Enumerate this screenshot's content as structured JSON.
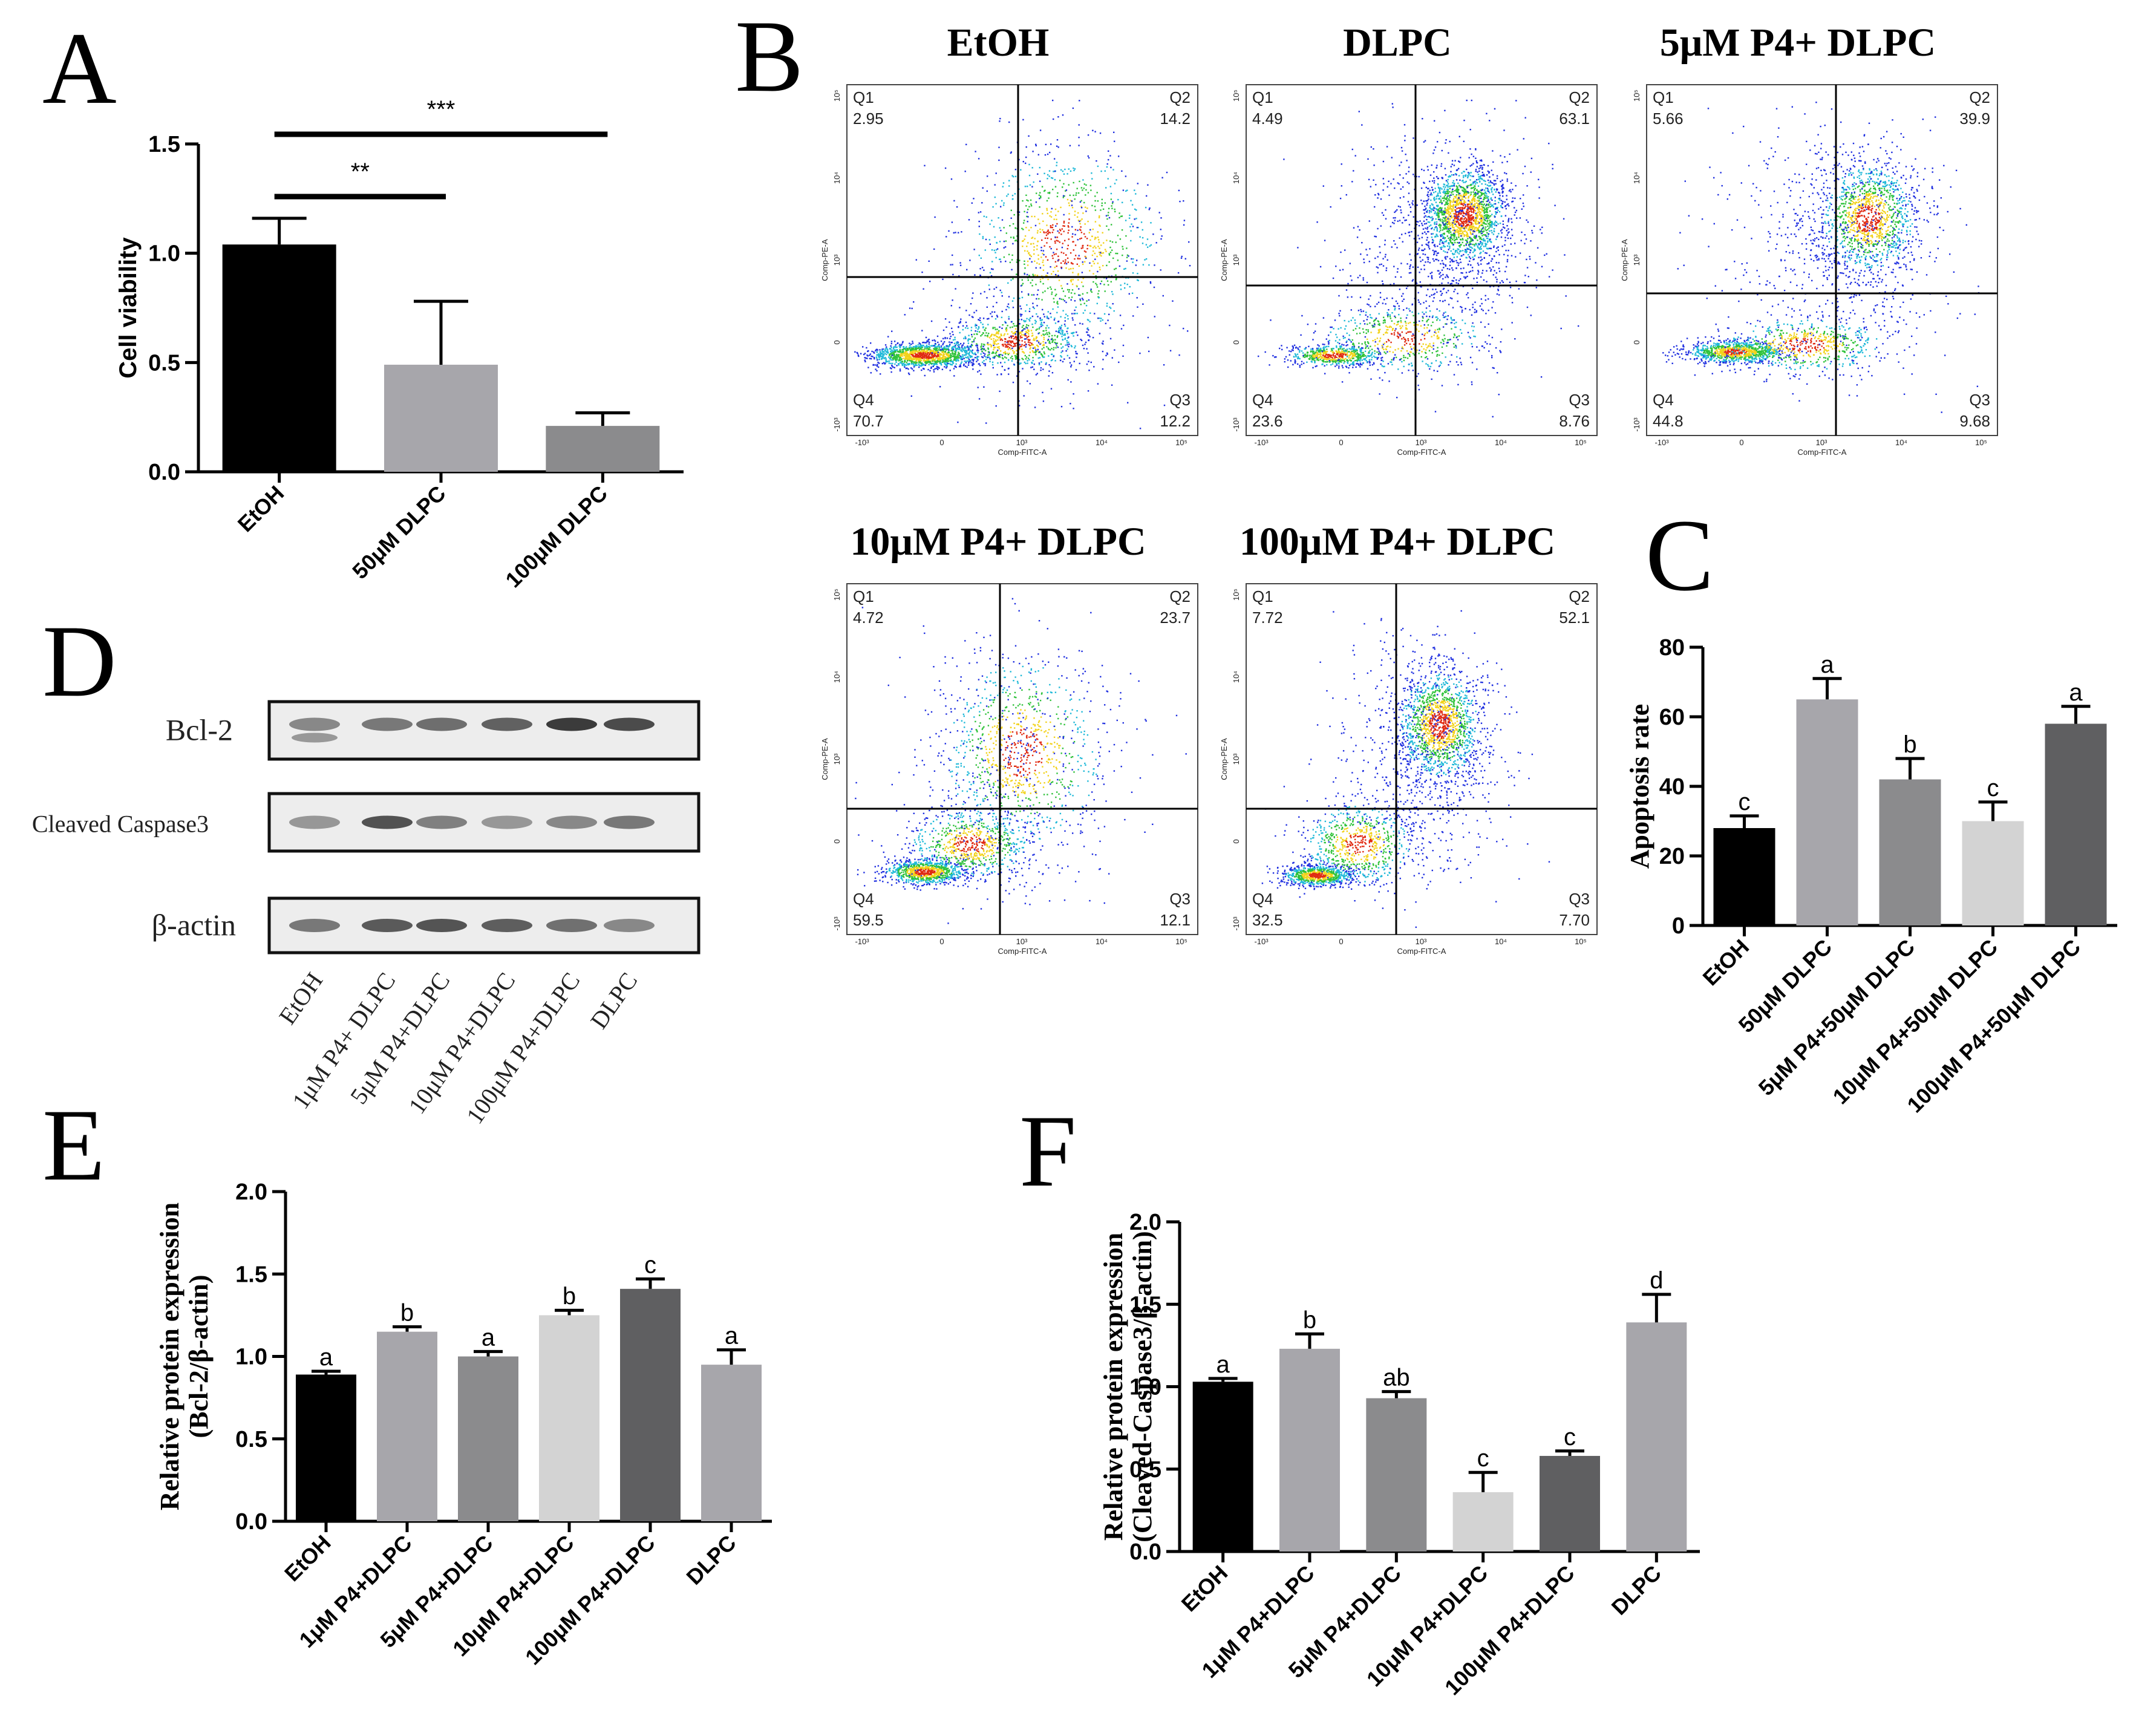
{
  "colors": {
    "black": "#000000",
    "grey_light": "#a7a6ab",
    "grey_mid": "#8b8b8d",
    "grey_pale": "#d3d3d3",
    "grey_dark": "#5f5f61",
    "grey_50": "#9d9d9f",
    "grey_100": "#7b7b7d"
  },
  "panel_letters": {
    "A": "A",
    "B": "B",
    "C": "C",
    "D": "D",
    "E": "E",
    "F": "F"
  },
  "chart_data": [
    {
      "panel": "A",
      "type": "bar",
      "categories": [
        "EtOH",
        "50μM DLPC",
        "100μM DLPC"
      ],
      "values": [
        1.04,
        0.49,
        0.21
      ],
      "errors": [
        0.12,
        0.29,
        0.06
      ],
      "bar_colors": [
        "#000000",
        "#a7a6ab",
        "#8b8b8d"
      ],
      "ylabel": "Cell viability",
      "ylim": [
        0.0,
        1.5
      ],
      "yticks": [
        "0.0",
        "0.5",
        "1.0",
        "1.5"
      ],
      "significance": [
        {
          "from": 0,
          "to": 1,
          "label": "**"
        },
        {
          "from": 0,
          "to": 2,
          "label": "***"
        }
      ]
    },
    {
      "panel": "C",
      "type": "bar",
      "categories": [
        "EtOH",
        "50μM DLPC",
        "5μM P4+50μM DLPC",
        "10μM P4+50μM DLPC",
        "100μM P4+50μM DLPC"
      ],
      "values": [
        28,
        65,
        42,
        30,
        58
      ],
      "errors": [
        3.5,
        6,
        6,
        5.5,
        5
      ],
      "letters": [
        "c",
        "a",
        "b",
        "c",
        "a"
      ],
      "bar_colors": [
        "#000000",
        "#a7a6ab",
        "#8b8b8d",
        "#d3d3d3",
        "#5f5f61"
      ],
      "ylabel": "Apoptosis rate",
      "ylim": [
        0,
        80
      ],
      "yticks": [
        "0",
        "20",
        "40",
        "60",
        "80"
      ]
    },
    {
      "panel": "E",
      "type": "bar",
      "categories": [
        "EtOH",
        "1μM P4+DLPC",
        "5μM P4+DLPC",
        "10μM P4+DLPC",
        "100μM P4+DLPC",
        "DLPC"
      ],
      "values": [
        0.89,
        1.15,
        1.0,
        1.25,
        1.41,
        0.95
      ],
      "errors": [
        0.02,
        0.03,
        0.03,
        0.03,
        0.06,
        0.09
      ],
      "letters": [
        "a",
        "b",
        "a",
        "b",
        "c",
        "a"
      ],
      "bar_colors": [
        "#000000",
        "#a7a6ab",
        "#8b8b8d",
        "#d3d3d3",
        "#5f5f61",
        "#a7a6ab"
      ],
      "ylabel_line1": "Relative protein expression",
      "ylabel_line2": "(Bcl-2/β-actin)",
      "ylim": [
        0.0,
        2.0
      ],
      "yticks": [
        "0.0",
        "0.5",
        "1.0",
        "1.5",
        "2.0"
      ]
    },
    {
      "panel": "F",
      "type": "bar",
      "categories": [
        "EtOH",
        "1μM P4+DLPC",
        "5μM P4+DLPC",
        "10μM P4+DLPC",
        "100μM P4+DLPC",
        "DLPC"
      ],
      "values": [
        1.03,
        1.23,
        0.93,
        0.36,
        0.58,
        1.39
      ],
      "errors": [
        0.02,
        0.09,
        0.04,
        0.12,
        0.03,
        0.17
      ],
      "letters": [
        "a",
        "b",
        "ab",
        "c",
        "c",
        "d"
      ],
      "bar_colors": [
        "#000000",
        "#a7a6ab",
        "#8b8b8d",
        "#d3d3d3",
        "#5f5f61",
        "#a7a6ab"
      ],
      "ylabel_line1": "Relative protein expression",
      "ylabel_line2": "(Cleaved-Caspase3/β-actin)",
      "ylim": [
        0.0,
        2.0
      ],
      "yticks": [
        "0.0",
        "0.5",
        "1.0",
        "1.5",
        "2.0"
      ]
    },
    {
      "panel": "B",
      "type": "scatter",
      "xlabel": "Comp-FITC-A",
      "ylabel": "Comp-PE-A",
      "xticks": [
        "-10³",
        "0",
        "10³",
        "10⁴",
        "10⁵"
      ],
      "yticks": [
        "10⁵",
        "10⁴",
        "10³",
        "0",
        "-10³"
      ],
      "plots": [
        {
          "title": "EtOH",
          "q1": "2.95",
          "q2": "14.2",
          "q3": "12.2",
          "q4": "70.7"
        },
        {
          "title": "DLPC",
          "q1": "4.49",
          "q2": "63.1",
          "q3": "8.76",
          "q4": "23.6"
        },
        {
          "title": "5μM P4+ DLPC",
          "q1": "5.66",
          "q2": "39.9",
          "q3": "9.68",
          "q4": "44.8"
        },
        {
          "title": "10μM P4+ DLPC",
          "q1": "4.72",
          "q2": "23.7",
          "q3": "12.1",
          "q4": "59.5"
        },
        {
          "title": "100μM P4+ DLPC",
          "q1": "7.72",
          "q2": "52.1",
          "q3": "7.70",
          "q4": "32.5"
        }
      ]
    }
  ],
  "quadrant_names": {
    "q1": "Q1",
    "q2": "Q2",
    "q3": "Q3",
    "q4": "Q4"
  },
  "western_blot": {
    "panel": "D",
    "rows": [
      "Bcl-2",
      "Cleaved Caspase3",
      "β-actin"
    ],
    "lanes": [
      "EtOH",
      "1μM P4+ DLPC",
      "5μM P4+DLPC",
      "10μM P4+DLPC",
      "100μM P4+DLPC",
      "DLPC"
    ]
  }
}
